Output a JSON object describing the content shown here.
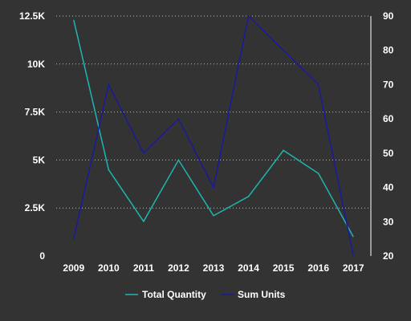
{
  "chart_data": {
    "type": "line",
    "x": [
      "2009",
      "2010",
      "2011",
      "2012",
      "2013",
      "2014",
      "2015",
      "2016",
      "2017"
    ],
    "y_left": {
      "min": 0,
      "max": 12500,
      "ticks": [
        0,
        2500,
        5000,
        7500,
        10000,
        12500
      ],
      "tick_labels": [
        "0",
        "2.5K",
        "5K",
        "7.5K",
        "10K",
        "12.5K"
      ]
    },
    "y_right": {
      "min": 20,
      "max": 90,
      "ticks": [
        20,
        30,
        40,
        50,
        60,
        70,
        80,
        90
      ],
      "tick_labels": [
        "20",
        "30",
        "40",
        "50",
        "60",
        "70",
        "80",
        "90"
      ]
    },
    "grid": true,
    "legend_position": "bottom",
    "series": [
      {
        "name": "Total Quantity",
        "axis": "left",
        "color": "#1fb5b0",
        "values": [
          12300,
          4500,
          1800,
          5000,
          2100,
          3100,
          5500,
          4300,
          1000
        ]
      },
      {
        "name": "Sum Units",
        "axis": "right",
        "color": "#1a1a9c",
        "values": [
          25,
          70,
          50,
          60,
          40,
          90,
          80,
          70,
          20
        ]
      }
    ]
  }
}
